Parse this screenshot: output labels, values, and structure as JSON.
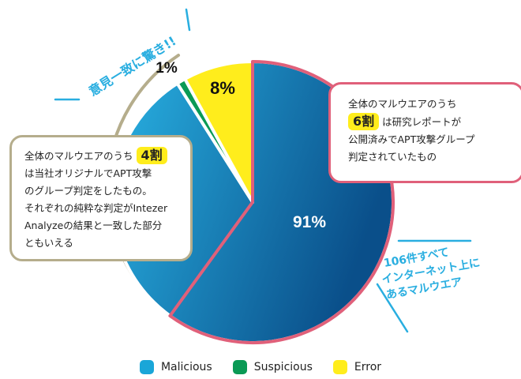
{
  "chart_data": {
    "type": "pie",
    "categories": [
      "Malicious",
      "Suspicious",
      "Error"
    ],
    "values": [
      91,
      1,
      8
    ],
    "value_labels": [
      "91%",
      "1%",
      "8%"
    ],
    "title": "",
    "legend": "bottom",
    "colors": [
      "#1aa6d8",
      "#0a9a55",
      "#ffed1c"
    ],
    "malicious_gradient": [
      "#29b3e4",
      "#0a4f8a"
    ]
  },
  "annotations": {
    "agree_note": "意見一致に驚き!!",
    "internet_note": [
      "106件すべて",
      "インターネット上に",
      "あるマルウエア"
    ],
    "right_box": {
      "line1": "全体のマルウエアのうち",
      "highlight": "6割",
      "line2_rest": "は研究レポートが",
      "line3": "公開済みでAPT攻撃グループ",
      "line4": "判定されていたもの"
    },
    "left_box": {
      "line1_pre": "全体のマルウエアのうち",
      "highlight": "4割",
      "line2": "は当社オリジナルでAPT攻撃",
      "line3": "のグループ判定をしたもの。",
      "line4": "それぞれの純粋な判定がIntezer",
      "line5": "Analyzeの結果と一致した部分",
      "line6": "ともいえる"
    }
  },
  "colors": {
    "accent_cyan": "#29aee0",
    "pink_border": "#e0607a",
    "khaki_border": "#b5ad8c"
  }
}
